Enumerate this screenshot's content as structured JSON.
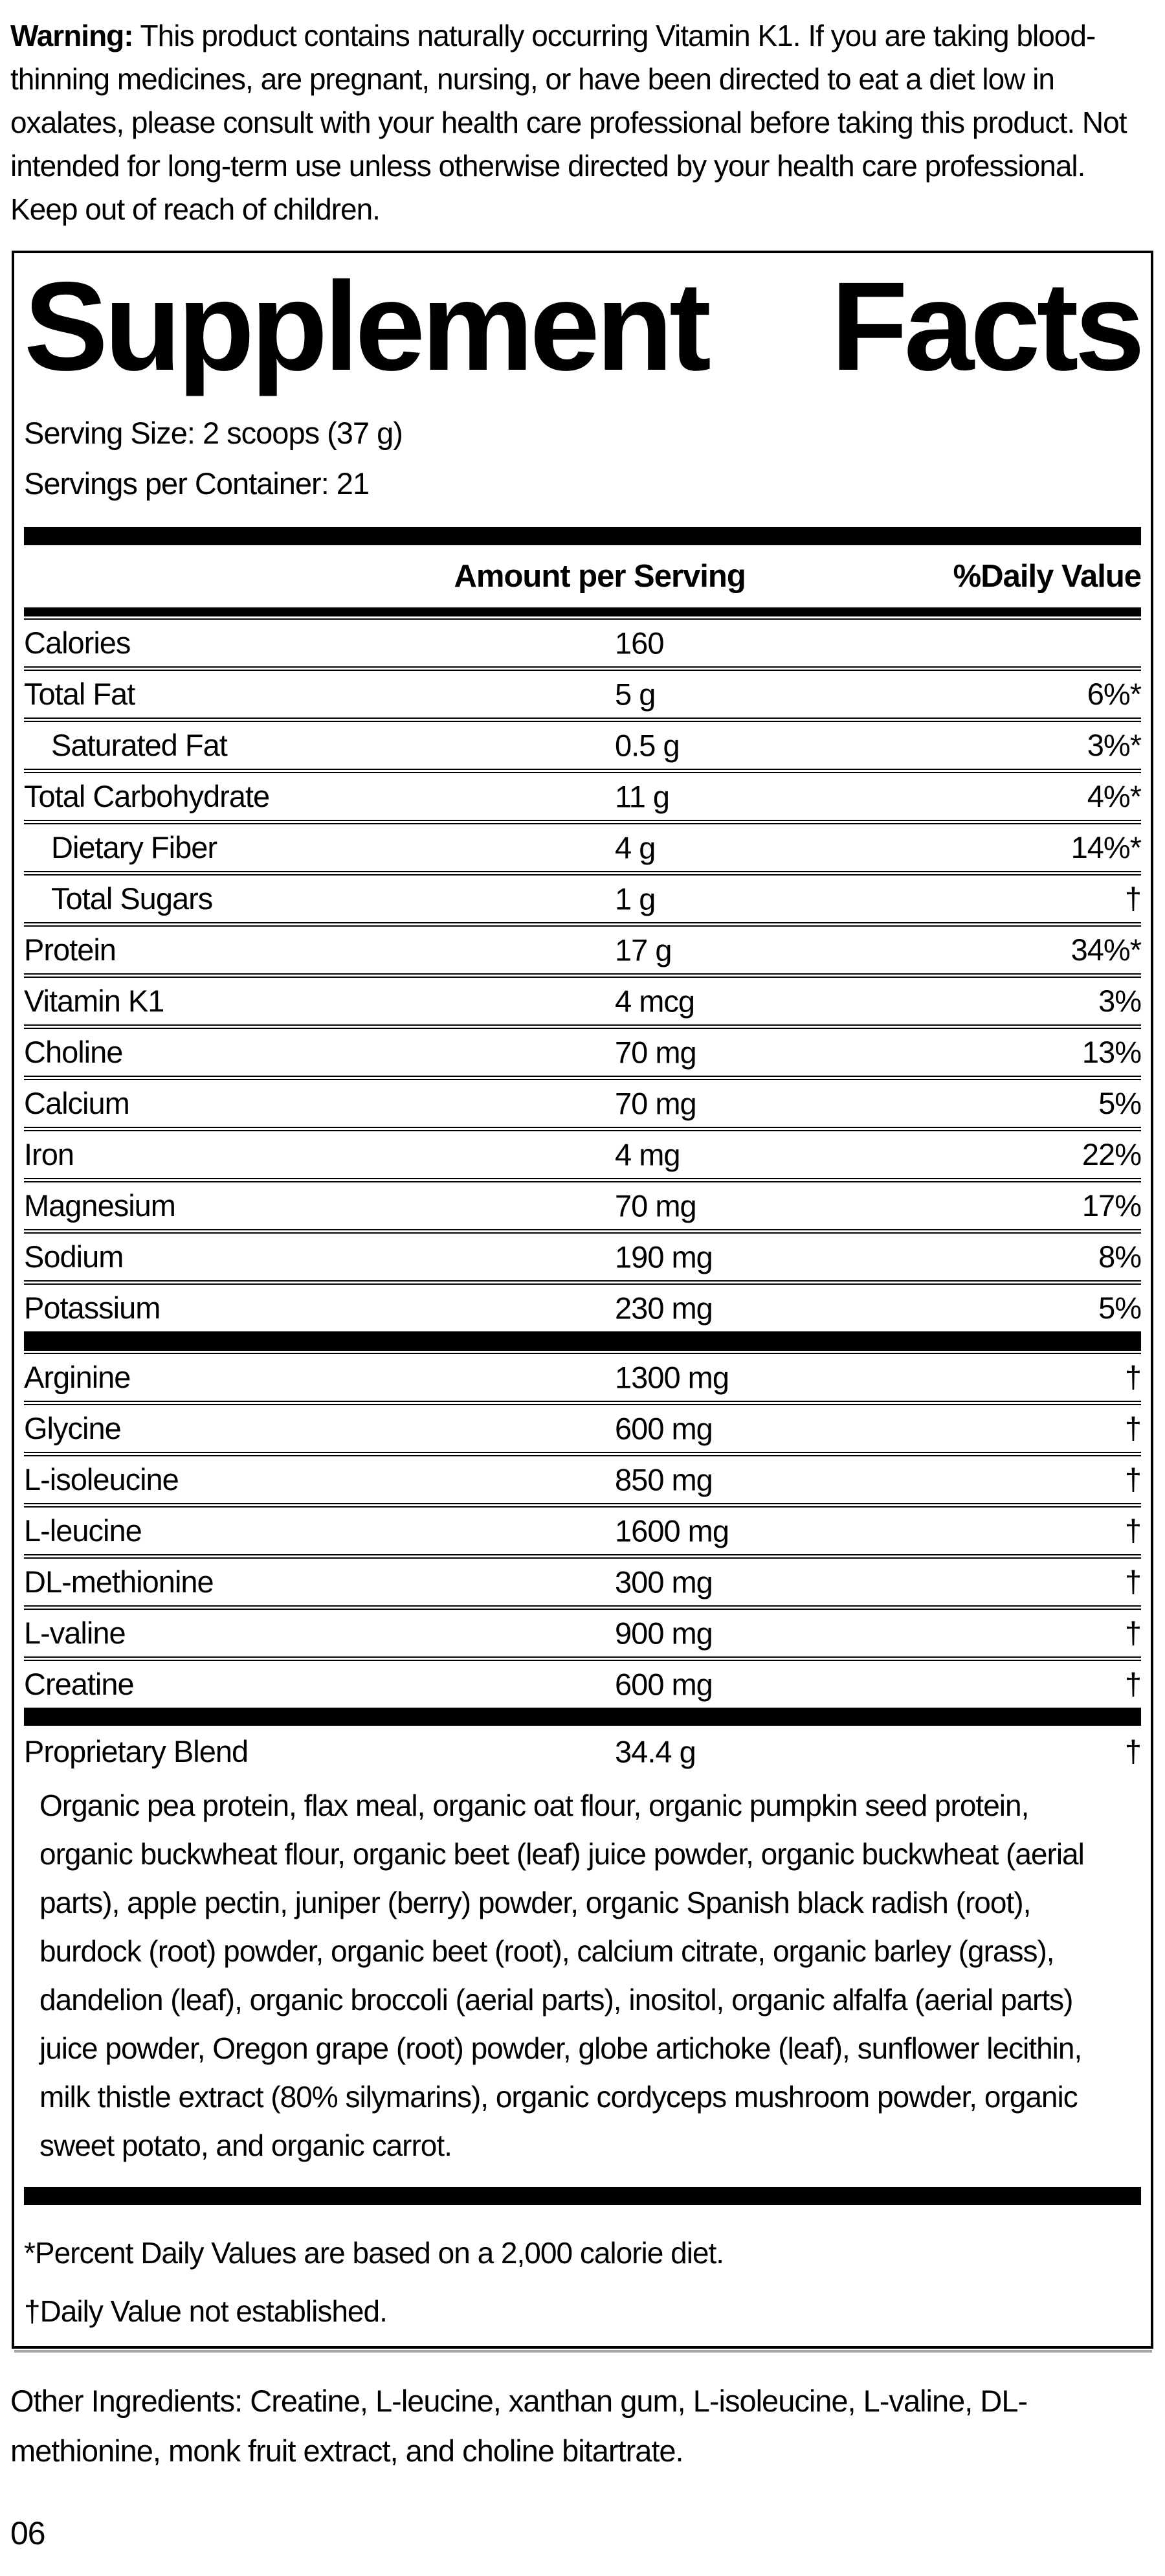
{
  "warning": {
    "label": "Warning:",
    "text": " This product contains naturally occurring Vitamin K1. If you are taking blood-thinning medicines, are pregnant, nursing, or have been directed to eat a diet low in oxalates, please consult with your health care professional before taking this product. Not intended for long-term use unless otherwise directed by your health care professional. Keep out of reach of children."
  },
  "panel": {
    "title": "Supplement Facts",
    "serving_size": "Serving Size: 2 scoops (37 g)",
    "servings_per_container": "Servings per Container: 21",
    "columns": {
      "amount": "Amount per Serving",
      "daily_value": "%Daily Value"
    },
    "rows": [
      {
        "label": "Calories",
        "amount": "160",
        "dv": "",
        "indent": false
      },
      {
        "label": "Total Fat",
        "amount": "5 g",
        "dv": "6%*",
        "indent": false
      },
      {
        "label": "Saturated Fat",
        "amount": "0.5 g",
        "dv": "3%*",
        "indent": true
      },
      {
        "label": "Total Carbohydrate",
        "amount": "11 g",
        "dv": "4%*",
        "indent": false
      },
      {
        "label": "Dietary Fiber",
        "amount": "4 g",
        "dv": "14%*",
        "indent": true
      },
      {
        "label": "Total Sugars",
        "amount": "1 g",
        "dv": "†",
        "indent": true
      },
      {
        "label": "Protein",
        "amount": "17 g",
        "dv": "34%*",
        "indent": false
      },
      {
        "label": "Vitamin K1",
        "amount": "4 mcg",
        "dv": "3%",
        "indent": false
      },
      {
        "label": "Choline",
        "amount": "70 mg",
        "dv": "13%",
        "indent": false
      },
      {
        "label": "Calcium",
        "amount": "70 mg",
        "dv": "5%",
        "indent": false
      },
      {
        "label": "Iron",
        "amount": "4 mg",
        "dv": "22%",
        "indent": false
      },
      {
        "label": "Magnesium",
        "amount": "70 mg",
        "dv": "17%",
        "indent": false
      },
      {
        "label": "Sodium",
        "amount": "190 mg",
        "dv": "8%",
        "indent": false
      },
      {
        "label": "Potassium",
        "amount": "230 mg",
        "dv": "5%",
        "indent": false
      }
    ],
    "amino_rows": [
      {
        "label": "Arginine",
        "amount": "1300 mg",
        "dv": "†",
        "indent": false
      },
      {
        "label": "Glycine",
        "amount": "600 mg",
        "dv": "†",
        "indent": false
      },
      {
        "label": "L-isoleucine",
        "amount": "850 mg",
        "dv": "†",
        "indent": false
      },
      {
        "label": "L-leucine",
        "amount": "1600 mg",
        "dv": "†",
        "indent": false
      },
      {
        "label": "DL-methionine",
        "amount": "300 mg",
        "dv": "†",
        "indent": false
      },
      {
        "label": "L-valine",
        "amount": "900 mg",
        "dv": "†",
        "indent": false
      },
      {
        "label": "Creatine",
        "amount": "600 mg",
        "dv": "†",
        "indent": false
      }
    ],
    "blend": {
      "label": "Proprietary Blend",
      "amount": "34.4 g",
      "dv": "†",
      "description": "Organic pea protein, flax meal, organic oat flour, organic pumpkin seed protein, organic buckwheat flour, organic beet (leaf) juice powder, organic buckwheat (aerial parts), apple pectin, juniper (berry) powder, organic Spanish black radish (root), burdock (root) powder, organic beet (root), calcium citrate, organic barley (grass), dandelion (leaf), organic broccoli (aerial parts), inositol, organic alfalfa (aerial parts) juice powder, Oregon grape (root) powder, globe artichoke (leaf), sunflower lecithin, milk thistle extract (80% silymarins), organic cordyceps mushroom powder, organic sweet potato, and organic carrot."
    },
    "footnotes": [
      "*Percent Daily Values are based on a 2,000 calorie diet.",
      "†Daily Value not established."
    ]
  },
  "other_ingredients": "Other Ingredients: Creatine, L-leucine, xanthan gum, L-isoleucine, L-valine, DL-methionine, monk fruit extract, and choline bitartrate.",
  "page_number": "06",
  "colors": {
    "text": "#000000",
    "background": "#ffffff",
    "rule": "#000000",
    "panel_shadow": "#a8a8a8"
  }
}
